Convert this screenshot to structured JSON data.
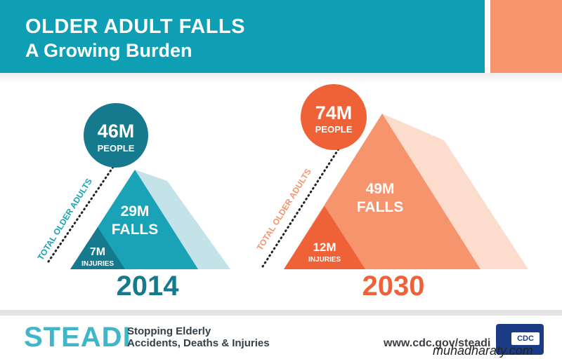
{
  "header": {
    "title": "OLDER ADULT FALLS",
    "subtitle": "A Growing Burden"
  },
  "panels": [
    {
      "year": "2014",
      "total_label": "TOTAL OLDER ADULTS",
      "people_value": "46M",
      "people_label": "PEOPLE",
      "falls_value": "29M",
      "falls_label": "FALLS",
      "injuries_value": "7M",
      "injuries_label": "INJURIES"
    },
    {
      "year": "2030",
      "total_label": "TOTAL OLDER ADULTS",
      "people_value": "74M",
      "people_label": "PEOPLE",
      "falls_value": "49M",
      "falls_label": "FALLS",
      "injuries_value": "12M",
      "injuries_label": "INJURIES"
    }
  ],
  "footer": {
    "logo_text": "STEADI",
    "tagline_line1": "Stopping Elderly",
    "tagline_line2": "Accidents, Deaths & Injuries",
    "url": "www.cdc.gov/steadi",
    "cdc_logo_text": "CDC",
    "watermark": "muhadharaty.com"
  },
  "colors": {
    "teal": "#0f9fb4",
    "teal_dark": "#157a8d",
    "orange": "#ef6237",
    "orange_light": "#f5946d"
  }
}
